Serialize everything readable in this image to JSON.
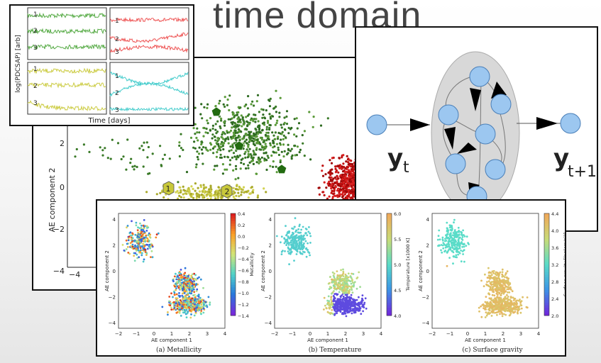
{
  "slide": {
    "title": "time domain"
  },
  "lightcurves": {
    "ylabel": "log(PDCSAP) [arb]",
    "xlabel": "Time [days]",
    "labels": [
      "1",
      "2",
      "3"
    ],
    "colors": [
      "#55aa44",
      "#ee5555",
      "#cccc44",
      "#44cccc"
    ]
  },
  "scatter": {
    "ylabel": "AE component 2",
    "yticks": [
      "2",
      "0",
      "−2",
      "−4"
    ],
    "xtick": "−4",
    "markers": [
      "1",
      "2"
    ]
  },
  "network": {
    "input_label": "y",
    "input_sub": "t",
    "output_label": "y",
    "output_sub": "t+1"
  },
  "subplots": {
    "xlabel": "AE component 1",
    "ylabel": "AE component 2",
    "xticks": [
      "−2",
      "−1",
      "0",
      "1",
      "2",
      "3",
      "4"
    ],
    "yticks": [
      "4",
      "2",
      "0",
      "−2",
      "−4"
    ],
    "panels": [
      {
        "caption": "(a) Metallicity",
        "cbar_label": "Metallicity",
        "cbar_ticks": [
          "0.4",
          "0.2",
          "0.0",
          "−0.2",
          "−0.4",
          "−0.6",
          "−0.8",
          "−1.0",
          "−1.2",
          "−1.4"
        ]
      },
      {
        "caption": "(b) Temperature",
        "cbar_label": "Temperature [x1000 K]",
        "cbar_ticks": [
          "6.0",
          "5.5",
          "5.0",
          "4.5",
          "4.0"
        ]
      },
      {
        "caption": "(c) Surface gravity",
        "cbar_label": "Surface gravity [log(cm/s²)]",
        "cbar_ticks": [
          "4.4",
          "4.0",
          "3.6",
          "3.2",
          "2.8",
          "2.4",
          "2.0"
        ]
      }
    ]
  }
}
